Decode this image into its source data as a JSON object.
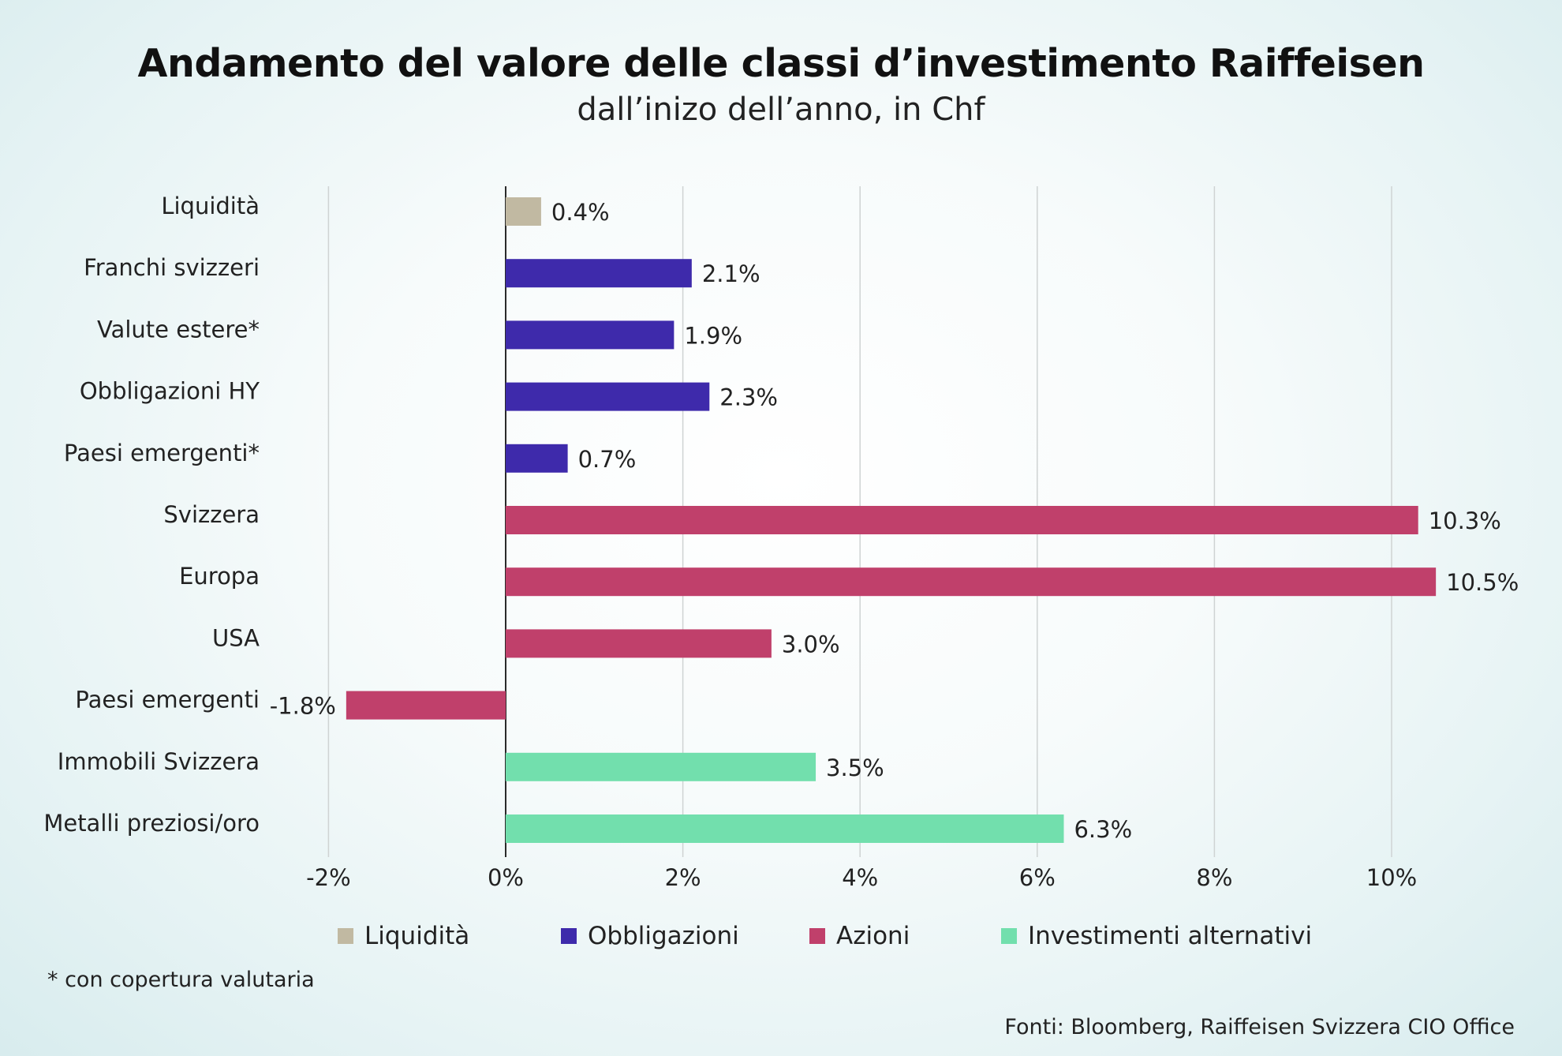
{
  "header": {
    "title": "Andamento del valore delle classi d’investimento Raiffeisen",
    "subtitle": "dall’inizo dell’anno, in Chf"
  },
  "chart_data": {
    "type": "bar",
    "orientation": "horizontal",
    "title": "Andamento del valore delle classi d’investimento Raiffeisen",
    "subtitle": "dall’inizo dell’anno, in Chf",
    "xlabel": "",
    "ylabel": "",
    "xlim": [
      -2,
      10.5
    ],
    "x_ticks": [
      -2,
      0,
      2,
      4,
      6,
      8,
      10
    ],
    "x_tick_labels": [
      "-2%",
      "0%",
      "2%",
      "4%",
      "6%",
      "8%",
      "10%"
    ],
    "grid": "vertical",
    "categories": [
      "Liquidità",
      "Franchi svizzeri",
      "Valute estere*",
      "Obbligazioni HY",
      "Paesi emergenti*",
      "Svizzera",
      "Europa",
      "USA",
      "Paesi emergenti",
      "Immobili Svizzera",
      "Metalli preziosi/oro"
    ],
    "values": [
      0.4,
      2.1,
      1.9,
      2.3,
      0.7,
      10.3,
      10.5,
      3.0,
      -1.8,
      3.5,
      6.3
    ],
    "value_labels": [
      "0.4%",
      "2.1%",
      "1.9%",
      "2.3%",
      "0.7%",
      "10.3%",
      "10.5%",
      "3.0%",
      "-1.8%",
      "3.5%",
      "6.3%"
    ],
    "groups": [
      0,
      1,
      1,
      1,
      1,
      2,
      2,
      2,
      2,
      3,
      3
    ],
    "legend": [
      {
        "name": "Liquidità",
        "color": "#c1b9a2"
      },
      {
        "name": "Obbligazioni",
        "color": "#3e2aab"
      },
      {
        "name": "Azioni",
        "color": "#c0406b"
      },
      {
        "name": "Investimenti alternativi",
        "color": "#72dfad"
      }
    ],
    "legend_position": "bottom"
  },
  "footnote": "* con copertura valutaria",
  "source": "Fonti: Bloomberg, Raiffeisen Svizzera CIO Office"
}
